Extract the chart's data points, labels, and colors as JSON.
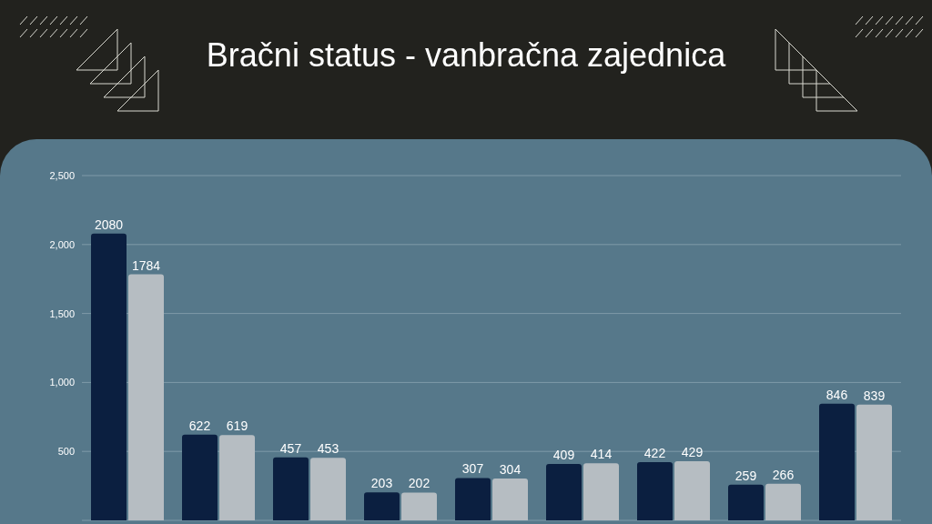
{
  "chart_data": {
    "type": "bar",
    "title": "Bračni status - vanbračna zajednica",
    "categories": [
      null,
      null,
      null,
      null,
      null,
      null,
      null,
      null,
      null
    ],
    "series": [
      {
        "color": "#0b1f40",
        "values": [
          2080,
          622,
          457,
          203,
          307,
          409,
          422,
          259,
          846
        ]
      },
      {
        "color": "#b6bdc2",
        "values": [
          1784,
          619,
          453,
          202,
          304,
          414,
          429,
          266,
          839
        ]
      }
    ],
    "ylim": [
      0,
      2500
    ],
    "yticks": [
      {
        "value": 500,
        "label": "500"
      },
      {
        "value": 1000,
        "label": "1,000"
      },
      {
        "value": 1500,
        "label": "1,500"
      },
      {
        "value": 2000,
        "label": "2,000"
      },
      {
        "value": 2500,
        "label": "2,500"
      }
    ],
    "grid": "y",
    "data_labels": true,
    "tick_labels": "y"
  }
}
